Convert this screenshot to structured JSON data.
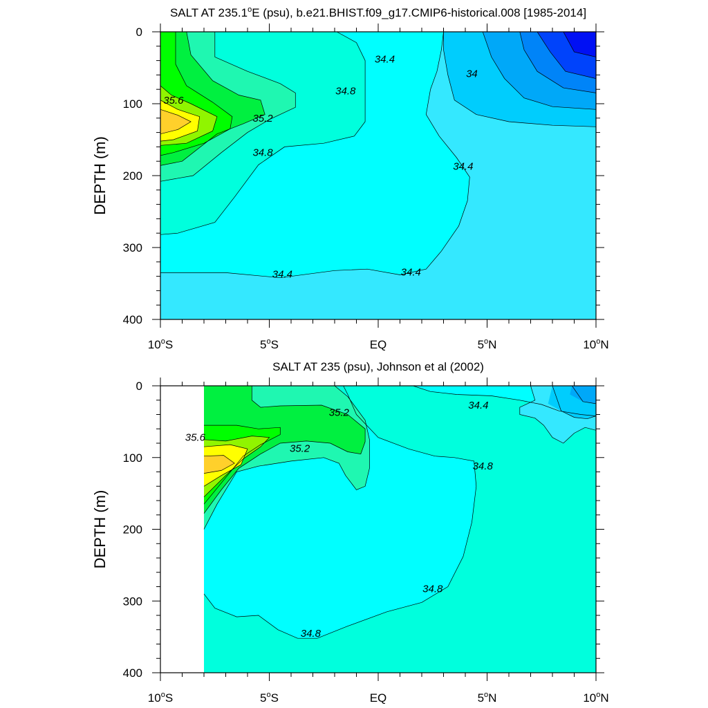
{
  "chart_data": [
    {
      "type": "heatmap",
      "title": "SALT AT 235.1°E (psu), b.e21.BHIST.f09_g17.CMIP6-historical.008 [1985-2014]",
      "title_parts": [
        "SALT AT 235.1",
        "o",
        "E (psu), b.e21.BHIST.f09_g17.CMIP6-historical.008 [1985-2014]"
      ],
      "ylabel": "DEPTH (m)",
      "xlim": [
        -10,
        10
      ],
      "ylim": [
        400,
        0
      ],
      "x_ticks": [
        {
          "value": -10,
          "num": "10",
          "deg": "o",
          "hemi": "S"
        },
        {
          "value": -5,
          "num": "5",
          "deg": "o",
          "hemi": "S"
        },
        {
          "value": 0,
          "num": "EQ",
          "deg": "",
          "hemi": ""
        },
        {
          "value": 5,
          "num": "5",
          "deg": "o",
          "hemi": "N"
        },
        {
          "value": 10,
          "num": "10",
          "deg": "o",
          "hemi": "N"
        }
      ],
      "y_ticks": [
        0,
        100,
        200,
        300,
        400
      ],
      "contour_labels": [
        {
          "text": "35.6",
          "x": -9.4,
          "y": 95
        },
        {
          "text": "35.2",
          "x": -5.3,
          "y": 120
        },
        {
          "text": "34.8",
          "x": -5.3,
          "y": 168
        },
        {
          "text": "34.8",
          "x": -1.5,
          "y": 82
        },
        {
          "text": "34.4",
          "x": 0.3,
          "y": 38
        },
        {
          "text": "34",
          "x": 4.3,
          "y": 58
        },
        {
          "text": "34.4",
          "x": 3.9,
          "y": 187
        },
        {
          "text": "34.4",
          "x": -4.4,
          "y": 337
        },
        {
          "text": "34.4",
          "x": 1.5,
          "y": 334
        }
      ]
    },
    {
      "type": "heatmap",
      "title": "SALT AT 235 (psu), Johnson et al (2002)",
      "ylabel": "DEPTH (m)",
      "xlim": [
        -10,
        10
      ],
      "ylim": [
        400,
        0
      ],
      "x_ticks": [
        {
          "value": -10,
          "num": "10",
          "deg": "o",
          "hemi": "S"
        },
        {
          "value": -5,
          "num": "5",
          "deg": "o",
          "hemi": "S"
        },
        {
          "value": 0,
          "num": "EQ",
          "deg": "",
          "hemi": ""
        },
        {
          "value": 5,
          "num": "5",
          "deg": "o",
          "hemi": "N"
        },
        {
          "value": 10,
          "num": "10",
          "deg": "o",
          "hemi": "N"
        }
      ],
      "y_ticks": [
        0,
        100,
        200,
        300,
        400
      ],
      "data_start_x": -8,
      "contour_labels": [
        {
          "text": "35.6",
          "x": -8.4,
          "y": 72
        },
        {
          "text": "35.2",
          "x": -1.8,
          "y": 37
        },
        {
          "text": "35.2",
          "x": -3.6,
          "y": 87
        },
        {
          "text": "34.4",
          "x": 4.6,
          "y": 27
        },
        {
          "text": "34.8",
          "x": 4.8,
          "y": 112
        },
        {
          "text": "34.8",
          "x": 2.5,
          "y": 283
        },
        {
          "text": "34.8",
          "x": -3.1,
          "y": 345
        }
      ]
    }
  ],
  "palette": {
    "s33_8": "#0010f4",
    "s34_0": "#0043fb",
    "s34_2": "#0084f8",
    "s34_3": "#00a8f8",
    "s34_4": "#00cdfd",
    "s34_5": "#34e8ff",
    "s34_6": "#00ffff",
    "s34_8": "#00ffdd",
    "s35_0": "#1ff7b1",
    "s35_2": "#00f040",
    "s35_4": "#00ff00",
    "s35_5": "#90f500",
    "s35_6": "#ffff00",
    "s35_8": "#ffd02b"
  }
}
